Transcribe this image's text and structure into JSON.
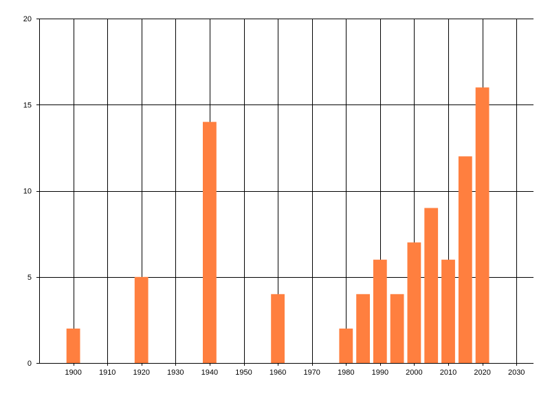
{
  "chart_data": {
    "type": "bar",
    "title": "",
    "xlabel": "",
    "ylabel": "",
    "x": [
      1900,
      1920,
      1940,
      1960,
      1980,
      1985,
      1990,
      1995,
      2000,
      2005,
      2010,
      2015,
      2020
    ],
    "values": [
      2,
      5,
      14,
      4,
      2,
      4,
      6,
      4,
      7,
      9,
      6,
      12,
      16
    ],
    "xlim": [
      1890,
      2035
    ],
    "ylim": [
      0,
      20
    ],
    "x_ticks": [
      "1900",
      "1910",
      "1920",
      "1930",
      "1940",
      "1950",
      "1960",
      "1970",
      "1980",
      "1990",
      "2000",
      "2010",
      "2020",
      "2030"
    ],
    "y_ticks": [
      "0",
      "5",
      "10",
      "15",
      "20"
    ],
    "bar_width_years": 4,
    "grid": true,
    "legend": "none",
    "colors": {
      "bar": "#ff7f3f",
      "grid": "#000000",
      "text": "#000000",
      "background": "#ffffff"
    }
  }
}
